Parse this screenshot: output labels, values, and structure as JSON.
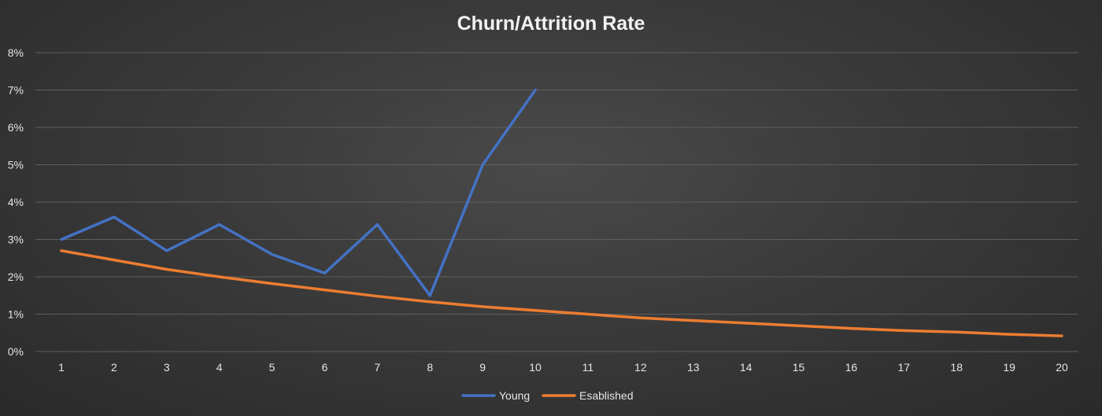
{
  "chart_data": {
    "type": "line",
    "title": "Churn/Attrition Rate",
    "xlabel": "",
    "ylabel": "",
    "x": [
      1,
      2,
      3,
      4,
      5,
      6,
      7,
      8,
      9,
      10,
      11,
      12,
      13,
      14,
      15,
      16,
      17,
      18,
      19,
      20
    ],
    "ylim": [
      0,
      8
    ],
    "yticks": [
      0,
      1,
      2,
      3,
      4,
      5,
      6,
      7,
      8
    ],
    "ytick_labels": [
      "0%",
      "1%",
      "2%",
      "3%",
      "4%",
      "5%",
      "6%",
      "7%",
      "8%"
    ],
    "grid": true,
    "legend_position": "bottom",
    "series": [
      {
        "name": "Young",
        "color": "#4472c4",
        "values": [
          3.0,
          3.6,
          2.7,
          3.4,
          2.6,
          2.1,
          3.4,
          1.5,
          5.0,
          7.0,
          null,
          null,
          null,
          null,
          null,
          null,
          null,
          null,
          null,
          null
        ]
      },
      {
        "name": "Esablished",
        "color": "#ed7d31",
        "values": [
          2.7,
          2.45,
          2.2,
          2.0,
          1.82,
          1.65,
          1.48,
          1.33,
          1.2,
          1.1,
          1.0,
          0.9,
          0.83,
          0.76,
          0.69,
          0.62,
          0.56,
          0.52,
          0.46,
          0.42
        ]
      }
    ]
  }
}
